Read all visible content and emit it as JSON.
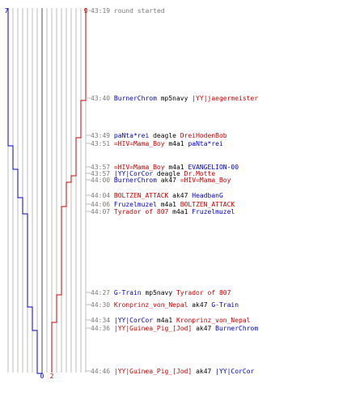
{
  "round_header": {
    "blue_count_top": "7",
    "red_count_top": "9",
    "blue_count_bottom": "0",
    "red_count_bottom": "2"
  },
  "colors": {
    "blue_team": "#0000cc",
    "red_team": "#cc0000",
    "time_text": "#7a7a7a",
    "weapon_text": "#000000",
    "grid_line": "#bdbdbd",
    "center_line": "#8a8a8a"
  },
  "events": [
    {
      "time": "43:19",
      "type": "info",
      "text": "round started",
      "killer": "",
      "killer_team": "",
      "weapon": "",
      "victim": "",
      "victim_team": ""
    },
    {
      "time": "43:40",
      "type": "kill",
      "text": "",
      "killer": "BurnerChrom",
      "killer_team": "blue",
      "weapon": "mp5navy",
      "victim": "|YY|jaegermeister",
      "victim_team": "red"
    },
    {
      "time": "43:49",
      "type": "kill",
      "text": "",
      "killer": "paNta*rei",
      "killer_team": "blue",
      "weapon": "deagle",
      "victim": "DreiHodenBob",
      "victim_team": "red"
    },
    {
      "time": "43:51",
      "type": "kill",
      "text": "",
      "killer": "=HIV=Mama_Boy",
      "killer_team": "red",
      "weapon": "m4a1",
      "victim": "paNta*rei",
      "victim_team": "blue"
    },
    {
      "time": "43:57",
      "type": "kill",
      "text": "",
      "killer": "=HIV=Mama_Boy",
      "killer_team": "red",
      "weapon": "m4a1",
      "victim": "EVANGELION-00",
      "victim_team": "blue"
    },
    {
      "time": "43:57",
      "type": "kill",
      "text": "",
      "killer": "|YY|CorCor",
      "killer_team": "blue",
      "weapon": "deagle",
      "victim": "Dr.Motte",
      "victim_team": "red"
    },
    {
      "time": "44:00",
      "type": "kill",
      "text": "",
      "killer": "BurnerChrom",
      "killer_team": "blue",
      "weapon": "ak47",
      "victim": "=HIV=Mama_Boy",
      "victim_team": "red"
    },
    {
      "time": "44:04",
      "type": "kill",
      "text": "",
      "killer": "BOLTZEN_ATTACK",
      "killer_team": "red",
      "weapon": "ak47",
      "victim": "HeadbanG",
      "victim_team": "blue"
    },
    {
      "time": "44:06",
      "type": "kill",
      "text": "",
      "killer": "Fruzelmuzel",
      "killer_team": "blue",
      "weapon": "m4a1",
      "victim": "BOLTZEN_ATTACK",
      "victim_team": "red"
    },
    {
      "time": "44:07",
      "type": "kill",
      "text": "",
      "killer": "Tyrador of 807",
      "killer_team": "red",
      "weapon": "m4a1",
      "victim": "Fruzelmuzel",
      "victim_team": "blue"
    },
    {
      "time": "44:27",
      "type": "kill",
      "text": "",
      "killer": "G-Train",
      "killer_team": "blue",
      "weapon": "mp5navy",
      "victim": "Tyrador of 807",
      "victim_team": "red"
    },
    {
      "time": "44:30",
      "type": "kill",
      "text": "",
      "killer": "Kronprinz_von_Nepal",
      "killer_team": "red",
      "weapon": "ak47",
      "victim": "G-Train",
      "victim_team": "blue"
    },
    {
      "time": "44:34",
      "type": "kill",
      "text": "",
      "killer": "|YY|CorCor",
      "killer_team": "blue",
      "weapon": "m4a1",
      "victim": "Kronprinz_von_Nepal",
      "victim_team": "red"
    },
    {
      "time": "44:36",
      "type": "kill",
      "text": "",
      "killer": "|YY|Guinea_Pig_[Jod]",
      "killer_team": "red",
      "weapon": "ak47",
      "victim": "BurnerChrom",
      "victim_team": "blue"
    },
    {
      "time": "44:46",
      "type": "kill",
      "text": "",
      "killer": "|YY|Guinea_Pig_[Jod]",
      "killer_team": "red",
      "weapon": "ak47",
      "victim": "|YY|CorCor",
      "victim_team": "blue"
    }
  ],
  "alive_counts": [
    {
      "blue": 7,
      "red": 9
    },
    {
      "blue": 7,
      "red": 8
    },
    {
      "blue": 7,
      "red": 7
    },
    {
      "blue": 6,
      "red": 7
    },
    {
      "blue": 5,
      "red": 7
    },
    {
      "blue": 5,
      "red": 6
    },
    {
      "blue": 5,
      "red": 5
    },
    {
      "blue": 4,
      "red": 5
    },
    {
      "blue": 4,
      "red": 4
    },
    {
      "blue": 3,
      "red": 4
    },
    {
      "blue": 3,
      "red": 3
    },
    {
      "blue": 2,
      "red": 3
    },
    {
      "blue": 2,
      "red": 2
    },
    {
      "blue": 1,
      "red": 2
    },
    {
      "blue": 0,
      "red": 2
    }
  ]
}
